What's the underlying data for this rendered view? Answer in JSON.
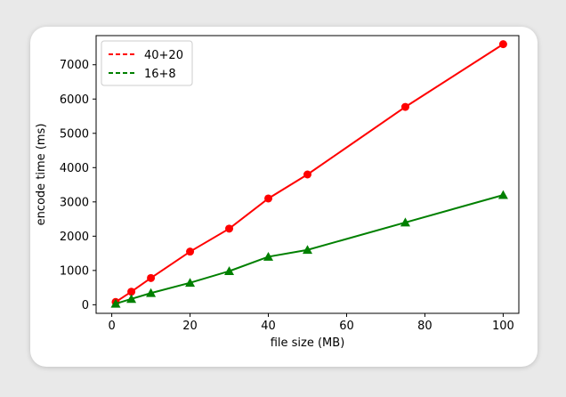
{
  "chart_data": {
    "type": "line",
    "xlabel": "file size (MB)",
    "ylabel": "encode time (ms)",
    "xlim": [
      -4,
      104
    ],
    "ylim": [
      -250,
      7850
    ],
    "xticks": [
      0,
      20,
      40,
      60,
      80,
      100
    ],
    "yticks": [
      0,
      1000,
      2000,
      3000,
      4000,
      5000,
      6000,
      7000
    ],
    "grid": false,
    "legend_position": "top-left",
    "series": [
      {
        "name": "40+20",
        "color": "#ff0000",
        "marker": "circle",
        "legend_line_style": "dashed",
        "x": [
          1,
          5,
          10,
          20,
          30,
          40,
          50,
          75,
          100
        ],
        "y": [
          80,
          380,
          780,
          1550,
          2220,
          3100,
          3800,
          5770,
          7600
        ]
      },
      {
        "name": "16+8",
        "color": "#008000",
        "marker": "triangle",
        "legend_line_style": "dashed",
        "x": [
          1,
          5,
          10,
          20,
          30,
          40,
          50,
          75,
          100
        ],
        "y": [
          30,
          170,
          340,
          640,
          980,
          1400,
          1600,
          2400,
          3200
        ]
      }
    ]
  }
}
